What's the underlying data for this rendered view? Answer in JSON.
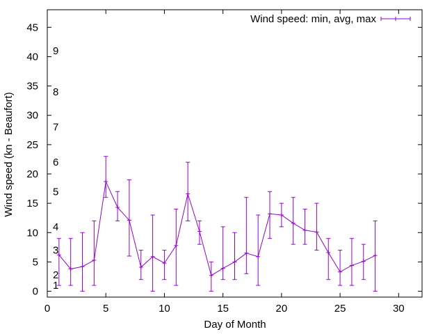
{
  "chart_data": {
    "type": "line",
    "xlabel": "Day of Month",
    "ylabel": "Wind speed (kn - Beaufort)",
    "xlim": [
      0,
      32
    ],
    "ylim": [
      -1,
      48
    ],
    "xticks": [
      0,
      5,
      10,
      15,
      20,
      25,
      30
    ],
    "yticks": [
      0,
      5,
      10,
      15,
      20,
      25,
      30,
      35,
      40,
      45
    ],
    "grid": false,
    "legend_position": "top-right",
    "colors": {
      "series": "#9400d3",
      "axis": "#000000"
    },
    "beaufort_labels": [
      {
        "y": 1,
        "label": "1"
      },
      {
        "y": 2.8,
        "label": "2"
      },
      {
        "y": 7,
        "label": "3"
      },
      {
        "y": 11,
        "label": "4"
      },
      {
        "y": 17,
        "label": "5"
      },
      {
        "y": 22,
        "label": "6"
      },
      {
        "y": 28,
        "label": "7"
      },
      {
        "y": 34,
        "label": "8"
      },
      {
        "y": 41,
        "label": "9"
      }
    ],
    "series": [
      {
        "name": "Wind speed: min, avg, max",
        "x": [
          1,
          2,
          3,
          4,
          5,
          6,
          7,
          8,
          9,
          10,
          11,
          12,
          13,
          14,
          15,
          16,
          17,
          18,
          19,
          20,
          21,
          22,
          23,
          24,
          25,
          26,
          27,
          28
        ],
        "avg": [
          6.2,
          3.8,
          4.2,
          5.3,
          18.7,
          14.3,
          12.1,
          4.1,
          5.9,
          4.8,
          7.8,
          16.6,
          10.2,
          2.7,
          3.9,
          5.0,
          6.5,
          5.9,
          13.2,
          13.0,
          11.6,
          10.4,
          10.1,
          6.6,
          3.3,
          4.4,
          5.1,
          6.1
        ],
        "min": [
          1,
          1,
          0,
          1,
          16,
          12,
          6,
          2,
          0,
          2,
          1,
          12,
          8,
          0,
          2,
          2,
          3,
          1,
          9,
          11,
          8,
          8,
          7,
          2,
          1,
          1,
          2,
          0
        ],
        "max": [
          9,
          9,
          10,
          12,
          23,
          17,
          19,
          7,
          13,
          7,
          14,
          22,
          12,
          5,
          11,
          10,
          16,
          13,
          17,
          15,
          16,
          14,
          15,
          9,
          7,
          9,
          8,
          12
        ]
      }
    ]
  }
}
